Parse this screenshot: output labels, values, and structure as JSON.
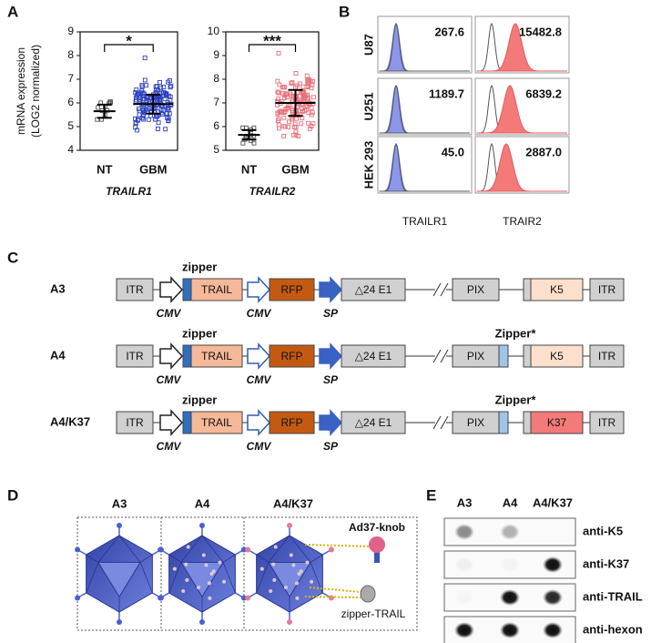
{
  "chart_data": [
    {
      "type": "scatter",
      "x_label": "TRAILR1",
      "categories": [
        "NT",
        "GBM"
      ],
      "values": [
        5.65,
        5.95
      ],
      "errors": [
        0.28,
        0.4
      ],
      "ranges": [
        [
          5.3,
          6.05
        ],
        [
          4.85,
          7.9
        ]
      ],
      "colors": [
        "#555555",
        "#2b3fbf"
      ],
      "ylim": [
        4,
        9
      ],
      "yticks": [
        4,
        5,
        6,
        7,
        8,
        9
      ],
      "significance": "*"
    },
    {
      "type": "scatter",
      "x_label": "TRAILR2",
      "categories": [
        "NT",
        "GBM"
      ],
      "values": [
        5.65,
        7.0
      ],
      "errors": [
        0.2,
        0.55
      ],
      "ranges": [
        [
          5.3,
          5.95
        ],
        [
          5.6,
          9.1
        ]
      ],
      "colors": [
        "#555555",
        "#e8707a"
      ],
      "ylim": [
        5,
        10
      ],
      "yticks": [
        5,
        6,
        7,
        8,
        9,
        10
      ],
      "significance": "***"
    }
  ],
  "panel_a": {
    "label": "A",
    "y_label": [
      "mRNA expression",
      "(LOG2 normalized)"
    ]
  },
  "panel_b": {
    "label": "B",
    "rows": [
      "U87",
      "U251",
      "HEK 293"
    ],
    "columns": [
      "TRAILR1",
      "TRAIR2"
    ],
    "values": [
      [
        "267.6",
        "15482.8"
      ],
      [
        "1189.7",
        "6839.2"
      ],
      [
        "45.0",
        "2887.0"
      ]
    ]
  },
  "panel_c": {
    "label": "C",
    "itr": "ITR",
    "zipper": "zipper",
    "trail": "TRAIL",
    "cmv": "CMV",
    "rfp": "RFP",
    "sp": "SP",
    "e1": "△24 E1",
    "pix": "PIX",
    "constructs": [
      {
        "name": "A3",
        "fiber": "K5"
      },
      {
        "name": "A4",
        "fiber": "K5",
        "fiber_zipper": "Zipper*"
      },
      {
        "name": "A4/K37",
        "fiber": "K37",
        "fiber_zipper": "Zipper*"
      }
    ]
  },
  "panel_d": {
    "label": "D",
    "viruses": [
      "A3",
      "A4",
      "A4/K37"
    ],
    "knob_label": "Ad37-knob",
    "zipper_label": "zipper-TRAIL"
  },
  "panel_e": {
    "label": "E",
    "columns": [
      "A3",
      "A4",
      "A4/K37"
    ],
    "rows": [
      "anti-K5",
      "anti-K37",
      "anti-TRAIL",
      "anti-hexon"
    ]
  }
}
